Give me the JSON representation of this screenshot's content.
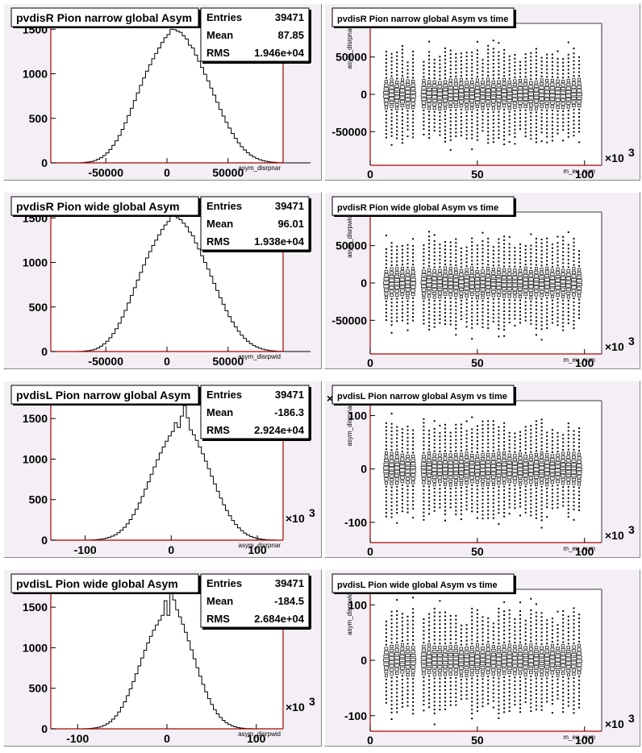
{
  "chart_data": [
    {
      "type": "histogram",
      "title": "pvdisR Pion narrow global Asym",
      "xlabel": "asym_disrpnar",
      "xlim": [
        -95000,
        95000
      ],
      "ylim": [
        0,
        1620
      ],
      "xticks": [
        -50000,
        0,
        50000
      ],
      "xtick_labels": [
        "-50000",
        "0",
        "50000"
      ],
      "yticks": [
        0,
        500,
        1000,
        1500
      ],
      "yticks_labels": [
        "0",
        "500",
        "1000",
        "1500"
      ],
      "x_exponent": "",
      "stats": {
        "entries_label": "Entries",
        "entries": "39471",
        "mean_label": "Mean",
        "mean": "87.85",
        "rms_label": "RMS",
        "rms": "1.946e+04"
      },
      "bins": {
        "start": -95000,
        "width": 2500,
        "counts": [
          0,
          0,
          0,
          0,
          0,
          0,
          0,
          0,
          0,
          1,
          3,
          6,
          10,
          16,
          26,
          40,
          58,
          82,
          112,
          150,
          196,
          248,
          308,
          376,
          450,
          530,
          614,
          700,
          786,
          870,
          952,
          1030,
          1102,
          1168,
          1228,
          1290,
          1350,
          1405,
          1440,
          1500,
          1495,
          1480,
          1465,
          1425,
          1390,
          1320,
          1290,
          1210,
          1140,
          1070,
          995,
          920,
          840,
          760,
          680,
          600,
          525,
          455,
          390,
          330,
          275,
          225,
          182,
          145,
          113,
          87,
          66,
          49,
          35,
          25,
          18,
          12,
          8,
          5,
          3,
          2,
          1,
          0,
          0,
          0,
          0,
          0,
          0,
          0,
          0,
          0
        ]
      }
    },
    {
      "type": "scatter2d",
      "title": "pvdisR Pion narrow global Asym vs time",
      "xlabel": "m_ev_num",
      "ylabel": "asym_disrpnar",
      "xlim": [
        0,
        108
      ],
      "ylim": [
        -95000,
        95000
      ],
      "xticks": [
        0,
        50,
        100
      ],
      "xtick_labels": [
        "0",
        "50",
        "100"
      ],
      "yticks": [
        -50000,
        0,
        50000
      ],
      "ytick_labels": [
        "-50000",
        "0",
        "50000"
      ],
      "x_exponent": "3",
      "y_exponent": "",
      "points": {
        "x_start": 7.5,
        "x_end": 97.5,
        "x_step": 2.5,
        "y_step": 5000,
        "gaps": [
          23,
          49,
          59
        ],
        "extent": 62000,
        "core": 20000
      }
    },
    {
      "type": "histogram",
      "title": "pvdisR Pion wide global Asym",
      "xlabel": "asym_disrpwid",
      "xlim": [
        -95000,
        95000
      ],
      "ylim": [
        0,
        1620
      ],
      "xticks": [
        -50000,
        0,
        50000
      ],
      "xtick_labels": [
        "-50000",
        "0",
        "50000"
      ],
      "yticks": [
        0,
        500,
        1000,
        1500
      ],
      "yticks_labels": [
        "0",
        "500",
        "1000",
        "1500"
      ],
      "x_exponent": "",
      "stats": {
        "entries_label": "Entries",
        "entries": "39471",
        "mean_label": "Mean",
        "mean": "96.01",
        "rms_label": "RMS",
        "rms": "1.938e+04"
      },
      "bins": {
        "start": -95000,
        "width": 2500,
        "counts": [
          0,
          0,
          0,
          0,
          0,
          0,
          0,
          0,
          0,
          1,
          3,
          6,
          10,
          16,
          26,
          40,
          60,
          85,
          116,
          155,
          202,
          256,
          318,
          388,
          462,
          545,
          630,
          716,
          802,
          888,
          970,
          1050,
          1122,
          1190,
          1250,
          1310,
          1370,
          1420,
          1460,
          1530,
          1520,
          1500,
          1480,
          1440,
          1400,
          1340,
          1300,
          1220,
          1150,
          1075,
          1000,
          925,
          845,
          765,
          685,
          605,
          530,
          458,
          392,
          332,
          277,
          227,
          184,
          147,
          115,
          88,
          67,
          50,
          36,
          26,
          18,
          12,
          8,
          5,
          3,
          2,
          1,
          0,
          0,
          0,
          0,
          0,
          0,
          0,
          0,
          0
        ]
      }
    },
    {
      "type": "scatter2d",
      "title": "pvdisR Pion wide global Asym vs time",
      "xlabel": "m_ev_num",
      "ylabel": "asym_disrpwid",
      "xlim": [
        0,
        108
      ],
      "ylim": [
        -95000,
        95000
      ],
      "xticks": [
        0,
        50,
        100
      ],
      "xtick_labels": [
        "0",
        "50",
        "100"
      ],
      "yticks": [
        -50000,
        0,
        50000
      ],
      "ytick_labels": [
        "-50000",
        "0",
        "50000"
      ],
      "x_exponent": "3",
      "y_exponent": "",
      "points": {
        "x_start": 7.5,
        "x_end": 97.5,
        "x_step": 2.5,
        "y_step": 5000,
        "gaps": [
          23,
          49,
          59
        ],
        "extent": 62000,
        "core": 20000
      }
    },
    {
      "type": "histogram",
      "title": "pvdisL Pion narrow global Asym",
      "xlabel": "asym_disrpnar",
      "xlim": [
        -140,
        130
      ],
      "ylim": [
        0,
        1780
      ],
      "xticks": [
        -100,
        0,
        100
      ],
      "xtick_labels": [
        "-100",
        "0",
        "100"
      ],
      "yticks": [
        0,
        500,
        1000,
        1500
      ],
      "yticks_labels": [
        "0",
        "500",
        "1000",
        "1500"
      ],
      "x_exponent": "3",
      "stats": {
        "entries_label": "Entries",
        "entries": "39471",
        "mean_label": "Mean",
        "mean": "-186.3",
        "rms_label": "RMS",
        "rms": "2.924e+04"
      },
      "bins": {
        "start": -140,
        "width": 3.5,
        "counts": [
          0,
          0,
          0,
          0,
          0,
          0,
          0,
          0,
          0,
          0,
          0,
          0,
          1,
          2,
          4,
          7,
          11,
          17,
          25,
          36,
          50,
          68,
          92,
          122,
          158,
          202,
          254,
          314,
          382,
          458,
          540,
          628,
          720,
          812,
          904,
          992,
          1075,
          1150,
          1220,
          1285,
          1340,
          1450,
          1390,
          1530,
          1660,
          1510,
          1360,
          1300,
          1230,
          1150,
          1065,
          975,
          882,
          788,
          694,
          604,
          518,
          438,
          365,
          300,
          243,
          193,
          151,
          116,
          87,
          64,
          46,
          32,
          22,
          15,
          10,
          6,
          4,
          2,
          1,
          0,
          0,
          0
        ]
      }
    },
    {
      "type": "scatter2d",
      "title": "pvdisL Pion narrow global Asym vs time",
      "xlabel": "m_ev_num",
      "ylabel": "asym_disrpnar",
      "xlim": [
        0,
        108
      ],
      "ylim": [
        -138,
        128
      ],
      "xticks": [
        0,
        50,
        100
      ],
      "xtick_labels": [
        "0",
        "50",
        "100"
      ],
      "yticks": [
        -100,
        0,
        100
      ],
      "ytick_labels": [
        "-100",
        "0",
        "100"
      ],
      "x_exponent": "3",
      "y_exponent": "3",
      "points": {
        "x_start": 7.5,
        "x_end": 97.5,
        "x_step": 2.5,
        "y_step": 7,
        "gaps": [
          23,
          49,
          59
        ],
        "extent": 92,
        "core": 30
      }
    },
    {
      "type": "histogram",
      "title": "pvdisL Pion wide global Asym",
      "xlabel": "asym_disrpwid",
      "xlim": [
        -130,
        130
      ],
      "ylim": [
        0,
        1780
      ],
      "xticks": [
        -100,
        0,
        100
      ],
      "xtick_labels": [
        "-100",
        "0",
        "100"
      ],
      "yticks": [
        0,
        500,
        1000,
        1500
      ],
      "yticks_labels": [
        "0",
        "500",
        "1000",
        "1500"
      ],
      "x_exponent": "3",
      "stats": {
        "entries_label": "Entries",
        "entries": "39471",
        "mean_label": "Mean",
        "mean": "-184.5",
        "rms_label": "RMS",
        "rms": "2.684e+04"
      },
      "bins": {
        "start": -130,
        "width": 3.25,
        "counts": [
          0,
          0,
          0,
          0,
          0,
          0,
          0,
          0,
          0,
          0,
          0,
          1,
          2,
          4,
          7,
          12,
          19,
          29,
          43,
          62,
          87,
          119,
          159,
          208,
          266,
          333,
          409,
          493,
          583,
          678,
          776,
          874,
          970,
          1060,
          1142,
          1215,
          1280,
          1340,
          1400,
          1580,
          1400,
          1730,
          1590,
          1470,
          1380,
          1290,
          1190,
          1085,
          975,
          864,
          754,
          648,
          548,
          456,
          373,
          300,
          237,
          184,
          140,
          104,
          76,
          54,
          37,
          25,
          16,
          10,
          6,
          3,
          2,
          1,
          0,
          0,
          0,
          0,
          0,
          0,
          0,
          0,
          0,
          0
        ]
      }
    },
    {
      "type": "scatter2d",
      "title": "pvdisL Pion wide global Asym vs time",
      "xlabel": "m_ev_num",
      "ylabel": "asym_disrpwid",
      "xlim": [
        0,
        108
      ],
      "ylim": [
        -128,
        128
      ],
      "xticks": [
        0,
        50,
        100
      ],
      "xtick_labels": [
        "0",
        "50",
        "100"
      ],
      "yticks": [
        -100,
        0,
        100
      ],
      "ytick_labels": [
        "-100",
        "0",
        "100"
      ],
      "x_exponent": "3",
      "y_exponent": "",
      "points": {
        "x_start": 7.5,
        "x_end": 97.5,
        "x_step": 2.5,
        "y_step": 7,
        "gaps": [
          23,
          49,
          59
        ],
        "extent": 92,
        "core": 28
      }
    }
  ],
  "colors": {
    "pad_bg": "#f3eff5",
    "frame_bg": "#ffffff",
    "axis_red": "#b00000",
    "line": "#000000"
  }
}
